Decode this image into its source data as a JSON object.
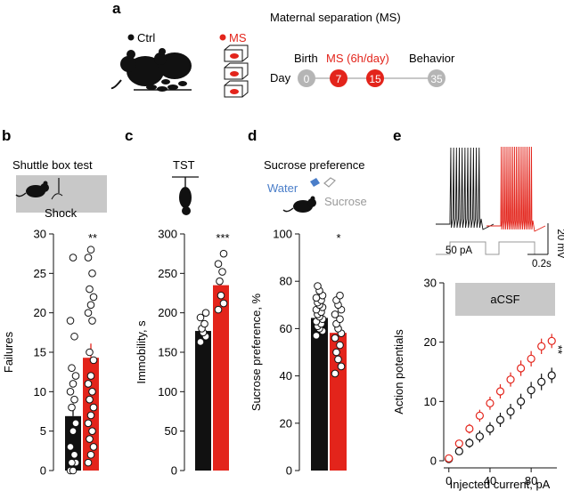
{
  "colors": {
    "ctrl": "#111111",
    "ms": "#e3241b",
    "grey_box": "#c8c8c8",
    "timeline_grey": "#b5b5b5",
    "water": "#4a7ec9",
    "sucrose": "#9a9a9a"
  },
  "panel_a": {
    "letter": "a",
    "title": "Maternal separation (MS)",
    "legend_ctrl": "Ctrl",
    "legend_ms": "MS",
    "timeline_label_day": "Day",
    "timeline_birth": "Birth",
    "timeline_ms": "MS (6h/day)",
    "timeline_behavior": "Behavior",
    "days": [
      "0",
      "7",
      "15",
      "35"
    ]
  },
  "panel_b": {
    "letter": "b",
    "title": "Shuttle box test",
    "icon_label": "Shock",
    "significance": "**"
  },
  "panel_c": {
    "letter": "c",
    "title": "TST",
    "significance": "***"
  },
  "panel_d": {
    "letter": "d",
    "title": "Sucrose preference",
    "water_label": "Water",
    "sucrose_label": "Sucrose",
    "significance": "*"
  },
  "panel_e": {
    "letter": "e",
    "trace_current": "50 pA",
    "scale_voltage": "20 mV",
    "scale_time": "0.2s",
    "box_label": "aCSF",
    "significance": "**"
  },
  "chart_data": [
    {
      "id": "b",
      "type": "bar",
      "title": "Shuttle box test",
      "xlabel": "",
      "ylabel": "Failures",
      "ylim": [
        0,
        30
      ],
      "yticks": [
        0,
        5,
        10,
        15,
        20,
        25,
        30
      ],
      "categories": [
        "Ctrl",
        "MS"
      ],
      "values": [
        6.9,
        14.3
      ],
      "sem": [
        1.6,
        1.8
      ],
      "points": [
        [
          0,
          0,
          1,
          1,
          2,
          3,
          5,
          6,
          8,
          9,
          10,
          11,
          12,
          13,
          17,
          19,
          27
        ],
        [
          1,
          2,
          3,
          4,
          5,
          6,
          7,
          8,
          9,
          10,
          11,
          12,
          14,
          15,
          19,
          20,
          21,
          22,
          23,
          25,
          27,
          28
        ]
      ]
    },
    {
      "id": "c",
      "type": "bar",
      "title": "TST",
      "xlabel": "",
      "ylabel": "Immobility, s",
      "ylim": [
        0,
        300
      ],
      "yticks": [
        0,
        50,
        100,
        150,
        200,
        250,
        300
      ],
      "categories": [
        "Ctrl",
        "MS"
      ],
      "values": [
        177,
        235
      ],
      "sem": [
        6,
        9
      ],
      "points": [
        [
          163,
          170,
          175,
          180,
          186,
          194,
          200
        ],
        [
          204,
          212,
          222,
          240,
          252,
          262,
          275
        ]
      ]
    },
    {
      "id": "d",
      "type": "bar",
      "title": "Sucrose preference",
      "xlabel": "",
      "ylabel": "Sucrose preference, %",
      "ylim": [
        0,
        100
      ],
      "yticks": [
        0,
        20,
        40,
        60,
        80,
        100
      ],
      "categories": [
        "Ctrl",
        "MS"
      ],
      "values": [
        64.5,
        58.2
      ],
      "sem": [
        1.2,
        2.4
      ],
      "points": [
        [
          57,
          59,
          60,
          61,
          62,
          63,
          64,
          65,
          66,
          67,
          68,
          69,
          70,
          71,
          72,
          73,
          74,
          76,
          78
        ],
        [
          41,
          44,
          47,
          50,
          53,
          56,
          58,
          60,
          62,
          64,
          66,
          68,
          70,
          72,
          74
        ]
      ]
    },
    {
      "id": "e",
      "type": "scatter",
      "title": "",
      "xlabel": "Injected current, pA",
      "ylabel": "Action potentials",
      "xlim": [
        -5,
        105
      ],
      "ylim": [
        0,
        30
      ],
      "xticks": [
        0,
        40,
        80
      ],
      "yticks": [
        0,
        10,
        20,
        30
      ],
      "series": [
        {
          "name": "Ctrl",
          "x": [
            0,
            10,
            20,
            30,
            40,
            50,
            60,
            70,
            80,
            90,
            100
          ],
          "y": [
            0.3,
            1.6,
            3.0,
            4.1,
            5.4,
            6.9,
            8.3,
            10.0,
            11.9,
            13.3,
            14.4
          ],
          "err": [
            0.2,
            0.6,
            0.8,
            1.0,
            1.1,
            1.2,
            1.3,
            1.3,
            1.4,
            1.4,
            1.3
          ]
        },
        {
          "name": "MS",
          "x": [
            0,
            10,
            20,
            30,
            40,
            50,
            60,
            70,
            80,
            90,
            100
          ],
          "y": [
            0.4,
            2.9,
            5.4,
            7.6,
            9.7,
            11.7,
            13.7,
            15.6,
            17.2,
            19.3,
            20.2
          ],
          "err": [
            0.2,
            0.6,
            0.8,
            1.0,
            1.1,
            1.2,
            1.2,
            1.3,
            1.3,
            1.3,
            1.2
          ]
        }
      ]
    }
  ]
}
